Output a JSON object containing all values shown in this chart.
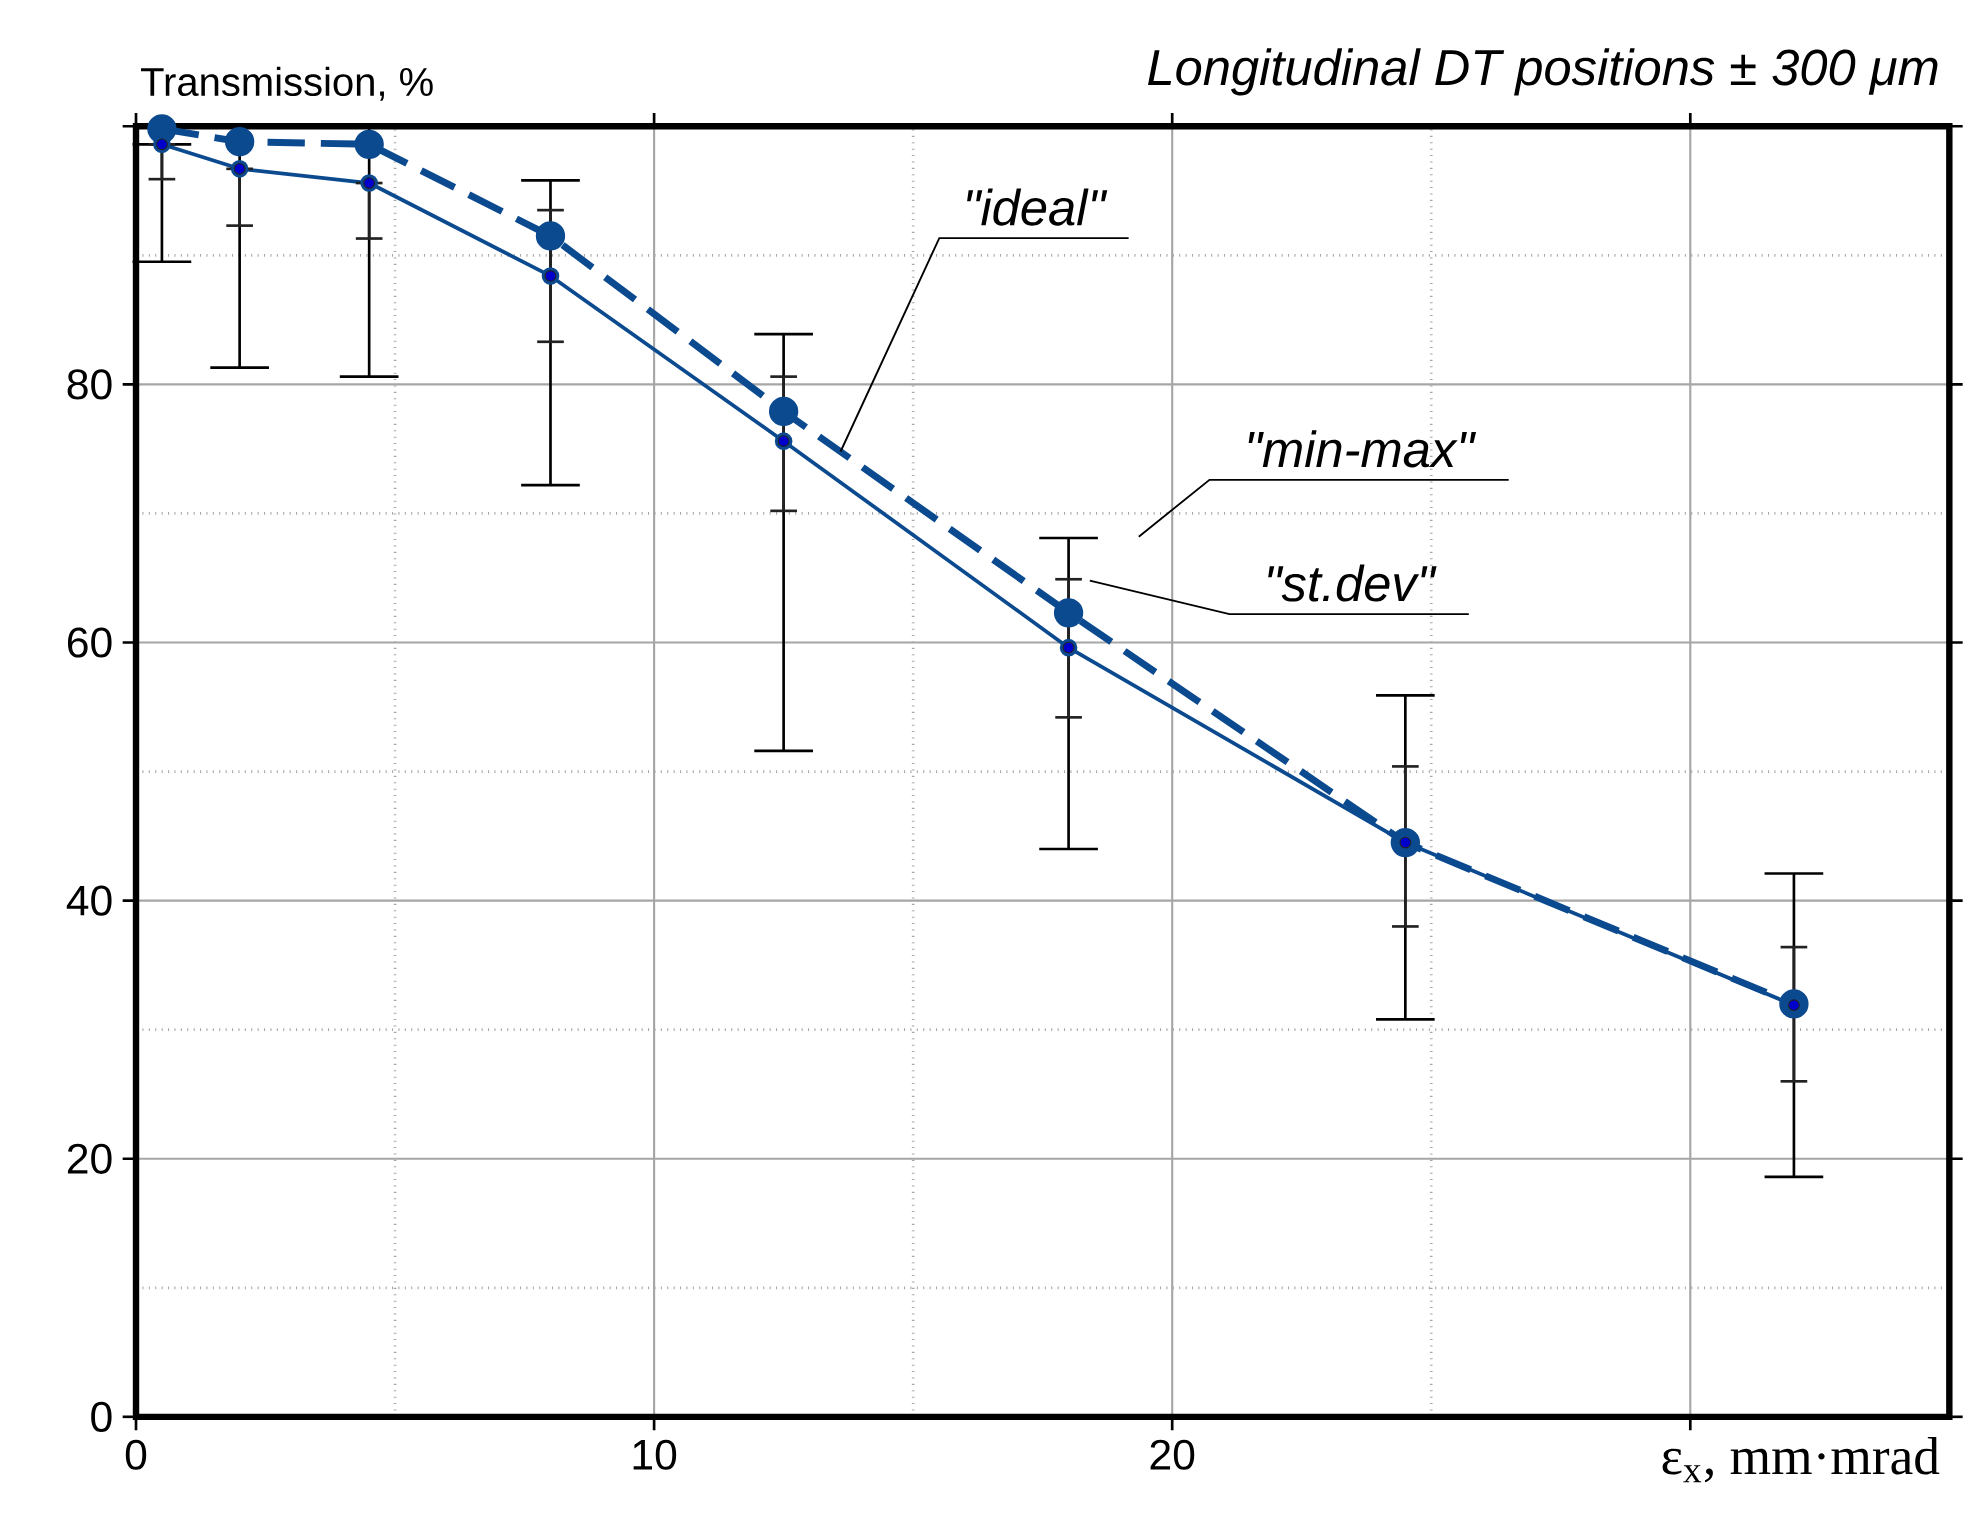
{
  "chart_data": {
    "type": "line",
    "title": "Longitudinal DT positions ± 300 μm",
    "ylabel": "Transmission, %",
    "xlabel": "ε$_{x}$, mm·mrad",
    "x": [
      0.5,
      2,
      4.5,
      8,
      12.5,
      18,
      24.5,
      32
    ],
    "series": [
      {
        "color": "#0b4a8f",
        "line_style": "dashed",
        "marker": "circle",
        "values": [
          99.8,
          98.8,
          98.6,
          91.5,
          77.9,
          62.3,
          44.5,
          32.0
        ]
      },
      {
        "color": "#0b4a8f",
        "line_style": "solid",
        "marker": "circle",
        "values": [
          98.6,
          96.7,
          95.6,
          88.4,
          75.6,
          59.6,
          44.5,
          31.9
        ],
        "errors": [
          [
            89.5,
            98.6
          ],
          [
            81.3,
            100
          ],
          [
            80.6,
            100
          ],
          [
            72.2,
            95.8
          ],
          [
            51.6,
            83.9
          ],
          [
            44.0,
            68.1
          ],
          [
            30.8,
            55.9
          ],
          [
            18.6,
            42.1
          ]
        ]
      },
      {
        "type": "scatter",
        "color": "#222222",
        "values": [
          98.6,
          96.7,
          95.6,
          88.4,
          75.6,
          59.6,
          44.5,
          31.9
        ],
        "errors": [
          [
            95.9,
            98.6
          ],
          [
            92.3,
            96.7
          ],
          [
            91.3,
            95.6
          ],
          [
            83.3,
            93.5
          ],
          [
            70.2,
            80.6
          ],
          [
            54.2,
            64.9
          ],
          [
            38.0,
            50.4
          ],
          [
            26.0,
            36.4
          ]
        ]
      }
    ],
    "annotations": [
      {
        "text": "\"ideal\"",
        "x": 13.6,
        "y": 74.8
      },
      "\"min-max\"",
      "\"st.dev\""
    ],
    "xlim": [
      0,
      35
    ],
    "xticks": [
      0,
      10,
      20,
      {
        "value": 30,
        "label": null
      }
    ],
    "ylim": [
      0,
      100
    ],
    "yticks": [
      0,
      20,
      40,
      60,
      80,
      {
        "value": 100,
        "label": null
      }
    ],
    "grid": true,
    "legend": false
  }
}
